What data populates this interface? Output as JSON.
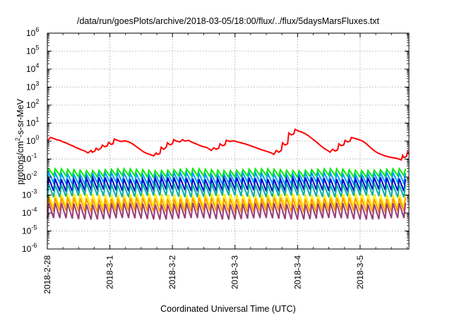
{
  "chart_data": {
    "type": "line",
    "title": "/data/run/goesPlots/archive/2018-03-05/18:00/flux/../flux/5daysMarsFluxes.txt",
    "xlabel": "Coordinated Universal Time (UTC)",
    "ylabel_parts": {
      "pre": "protons/cm",
      "sup": "2",
      "post": "-s-sr-MeV"
    },
    "y_scale": "log",
    "ylim_exp": [
      -6,
      6
    ],
    "x_range_days": [
      0,
      5.78
    ],
    "x_ticks": [
      {
        "day": 0,
        "label": "2018-2-28"
      },
      {
        "day": 1,
        "label": "2018-3-1"
      },
      {
        "day": 2,
        "label": "2018-3-2"
      },
      {
        "day": 3,
        "label": "2018-3-3"
      },
      {
        "day": 4,
        "label": "2018-3-4"
      },
      {
        "day": 5,
        "label": "2018-3-5"
      }
    ],
    "y_ticks": [
      {
        "exp": 6,
        "base": "10",
        "sup": "6"
      },
      {
        "exp": 5,
        "base": "10",
        "sup": "5"
      },
      {
        "exp": 4,
        "base": "10",
        "sup": "4"
      },
      {
        "exp": 3,
        "base": "10",
        "sup": "3"
      },
      {
        "exp": 2,
        "base": "10",
        "sup": "2"
      },
      {
        "exp": 1,
        "base": "10",
        "sup": "1"
      },
      {
        "exp": 0,
        "base": "10",
        "sup": "0"
      },
      {
        "exp": -1,
        "base": "10",
        "sup": "-1"
      },
      {
        "exp": -2,
        "base": "10",
        "sup": "-2"
      },
      {
        "exp": -3,
        "base": "10",
        "sup": "-3"
      },
      {
        "exp": -4,
        "base": "10",
        "sup": "-4"
      },
      {
        "exp": -5,
        "base": "10",
        "sup": "-5"
      },
      {
        "exp": -6,
        "base": "10",
        "sup": "-6"
      }
    ],
    "grid": true,
    "legend": "none",
    "series": [
      {
        "color": "#ff0000",
        "points": [
          [
            0.0,
            1.0
          ],
          [
            0.05,
            1.6
          ],
          [
            0.1,
            1.4
          ],
          [
            0.15,
            1.2
          ],
          [
            0.2,
            1.1
          ],
          [
            0.25,
            0.9
          ],
          [
            0.3,
            0.8
          ],
          [
            0.35,
            0.65
          ],
          [
            0.4,
            0.55
          ],
          [
            0.45,
            0.45
          ],
          [
            0.5,
            0.38
          ],
          [
            0.55,
            0.32
          ],
          [
            0.6,
            0.28
          ],
          [
            0.65,
            0.22
          ],
          [
            0.7,
            0.3
          ],
          [
            0.72,
            0.24
          ],
          [
            0.76,
            0.28
          ],
          [
            0.78,
            0.4
          ],
          [
            0.82,
            0.32
          ],
          [
            0.86,
            0.42
          ],
          [
            0.88,
            0.6
          ],
          [
            0.92,
            0.48
          ],
          [
            0.96,
            0.55
          ],
          [
            0.98,
            0.85
          ],
          [
            1.02,
            0.65
          ],
          [
            1.05,
            0.7
          ],
          [
            1.07,
            1.3
          ],
          [
            1.12,
            1.1
          ],
          [
            1.18,
            0.95
          ],
          [
            1.24,
            1.05
          ],
          [
            1.3,
            0.9
          ],
          [
            1.36,
            0.7
          ],
          [
            1.42,
            0.5
          ],
          [
            1.48,
            0.35
          ],
          [
            1.54,
            0.25
          ],
          [
            1.6,
            0.2
          ],
          [
            1.66,
            0.17
          ],
          [
            1.7,
            0.15
          ],
          [
            1.74,
            0.22
          ],
          [
            1.76,
            0.18
          ],
          [
            1.8,
            0.2
          ],
          [
            1.82,
            0.45
          ],
          [
            1.86,
            0.35
          ],
          [
            1.9,
            0.45
          ],
          [
            1.92,
            0.8
          ],
          [
            1.96,
            0.62
          ],
          [
            2.0,
            0.7
          ],
          [
            2.02,
            1.2
          ],
          [
            2.06,
            1.0
          ],
          [
            2.12,
            0.9
          ],
          [
            2.16,
            1.2
          ],
          [
            2.2,
            1.0
          ],
          [
            2.26,
            1.1
          ],
          [
            2.3,
            0.9
          ],
          [
            2.36,
            0.75
          ],
          [
            2.42,
            0.6
          ],
          [
            2.48,
            0.5
          ],
          [
            2.54,
            0.45
          ],
          [
            2.58,
            0.38
          ],
          [
            2.62,
            0.3
          ],
          [
            2.66,
            0.42
          ],
          [
            2.7,
            0.35
          ],
          [
            2.74,
            0.4
          ],
          [
            2.76,
            0.7
          ],
          [
            2.8,
            0.55
          ],
          [
            2.84,
            0.62
          ],
          [
            2.86,
            1.1
          ],
          [
            2.92,
            0.95
          ],
          [
            2.98,
            1.05
          ],
          [
            3.04,
            0.9
          ],
          [
            3.1,
            0.8
          ],
          [
            3.16,
            0.7
          ],
          [
            3.22,
            0.6
          ],
          [
            3.28,
            0.5
          ],
          [
            3.34,
            0.42
          ],
          [
            3.4,
            0.35
          ],
          [
            3.46,
            0.3
          ],
          [
            3.52,
            0.26
          ],
          [
            3.58,
            0.22
          ],
          [
            3.62,
            0.18
          ],
          [
            3.66,
            0.3
          ],
          [
            3.7,
            0.24
          ],
          [
            3.74,
            0.3
          ],
          [
            3.76,
            0.8
          ],
          [
            3.8,
            0.6
          ],
          [
            3.84,
            0.7
          ],
          [
            3.86,
            2.8
          ],
          [
            3.9,
            2.2
          ],
          [
            3.94,
            2.5
          ],
          [
            3.96,
            4.5
          ],
          [
            4.0,
            3.8
          ],
          [
            4.06,
            3.2
          ],
          [
            4.12,
            2.6
          ],
          [
            4.18,
            1.9
          ],
          [
            4.24,
            1.3
          ],
          [
            4.3,
            0.9
          ],
          [
            4.36,
            0.6
          ],
          [
            4.42,
            0.4
          ],
          [
            4.48,
            0.3
          ],
          [
            4.52,
            0.24
          ],
          [
            4.56,
            0.35
          ],
          [
            4.6,
            0.28
          ],
          [
            4.64,
            0.32
          ],
          [
            4.66,
            0.7
          ],
          [
            4.7,
            0.55
          ],
          [
            4.74,
            0.62
          ],
          [
            4.76,
            1.1
          ],
          [
            4.8,
            0.9
          ],
          [
            4.84,
            1.0
          ],
          [
            4.86,
            1.6
          ],
          [
            4.92,
            1.4
          ],
          [
            4.98,
            1.2
          ],
          [
            5.04,
            1.0
          ],
          [
            5.1,
            0.7
          ],
          [
            5.16,
            0.45
          ],
          [
            5.22,
            0.3
          ],
          [
            5.28,
            0.22
          ],
          [
            5.34,
            0.18
          ],
          [
            5.4,
            0.15
          ],
          [
            5.46,
            0.13
          ],
          [
            5.52,
            0.12
          ],
          [
            5.58,
            0.11
          ],
          [
            5.62,
            0.1
          ],
          [
            5.66,
            0.09
          ],
          [
            5.68,
            0.16
          ],
          [
            5.7,
            0.12
          ],
          [
            5.74,
            0.14
          ],
          [
            5.76,
            0.25
          ],
          [
            5.78,
            0.2
          ]
        ]
      },
      {
        "color": "#00ee00",
        "sawtooth": {
          "period": 0.1,
          "low": 0.011,
          "high": 0.026,
          "wave_amp": 0.12
        }
      },
      {
        "color": "#00a0ff",
        "sawtooth": {
          "period": 0.1,
          "low": 0.0045,
          "high": 0.016,
          "wave_amp": 0.12
        }
      },
      {
        "color": "#0000cc",
        "sawtooth": {
          "period": 0.1,
          "low": 0.0018,
          "high": 0.0085,
          "wave_amp": 0.12
        }
      },
      {
        "color": "#00b0a0",
        "sawtooth": {
          "period": 0.1,
          "low": 0.00085,
          "high": 0.0042,
          "wave_amp": 0.12
        }
      },
      {
        "color": "#ffee00",
        "sawtooth": {
          "period": 0.1,
          "low": 0.00022,
          "high": 0.0011,
          "wave_amp": 0.1
        }
      },
      {
        "color": "#ff9900",
        "sawtooth": {
          "period": 0.1,
          "low": 0.00012,
          "high": 0.00065,
          "wave_amp": 0.1
        }
      },
      {
        "color": "#9a3d7a",
        "sawtooth": {
          "period": 0.1,
          "low": 4.8e-05,
          "high": 0.00033,
          "wave_amp": 0.1
        }
      }
    ]
  }
}
